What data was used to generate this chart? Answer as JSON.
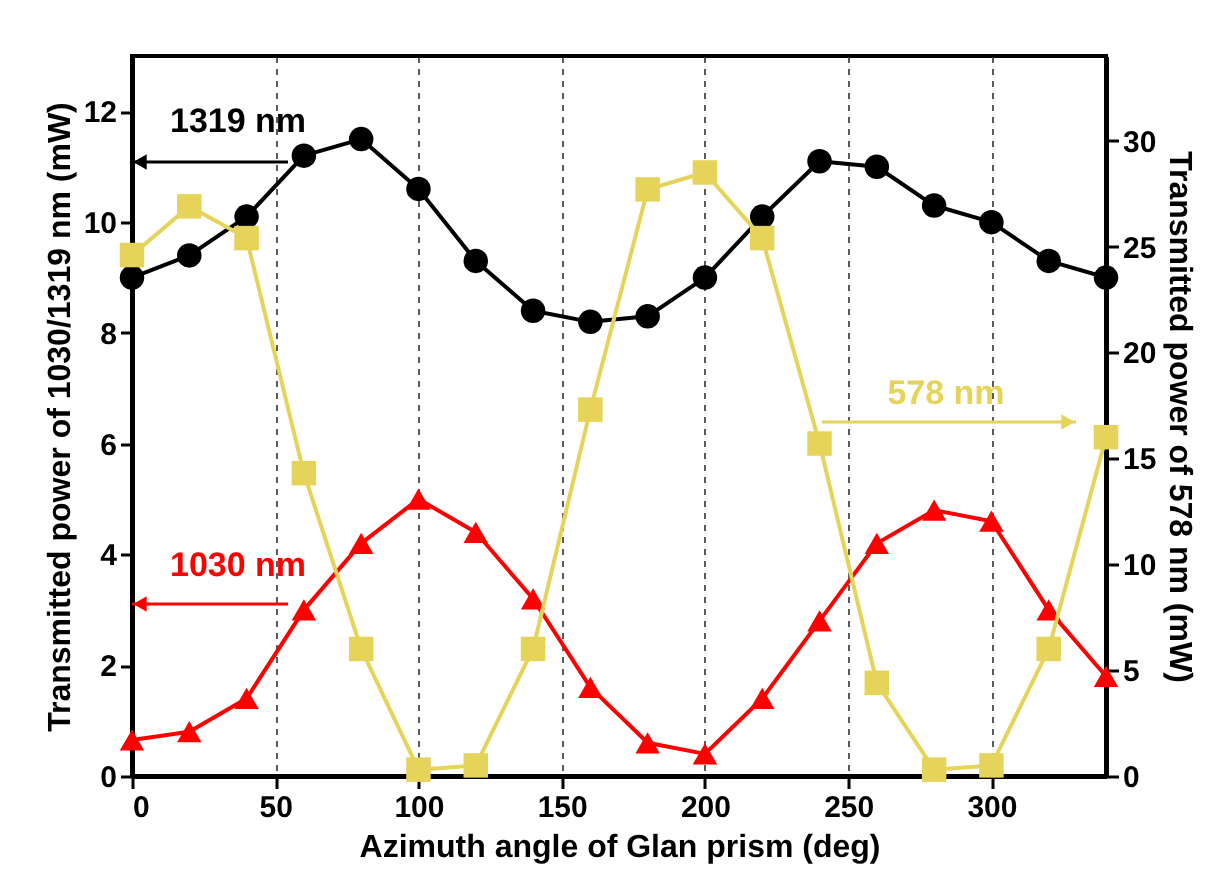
{
  "chart_data": {
    "type": "line",
    "xlabel": "Azimuth angle of Glan prism (deg)",
    "ylabel": "Transmitted power of 1030/1319 nm (mW)",
    "y2label": "Transmitted power of 578 nm (mW)",
    "x": [
      0,
      20,
      40,
      60,
      80,
      100,
      120,
      140,
      160,
      180,
      200,
      220,
      240,
      260,
      280,
      300,
      320,
      340
    ],
    "series": [
      {
        "name": "1319 nm",
        "color": "#000000",
        "marker": "circle",
        "values": [
          9.0,
          9.4,
          10.1,
          11.2,
          11.5,
          10.6,
          9.3,
          8.4,
          8.2,
          8.3,
          9.0,
          10.1,
          11.1,
          11.0,
          10.3,
          10.0,
          9.3,
          9.0
        ]
      },
      {
        "name": "1030 nm",
        "color": "#ff0000",
        "marker": "triangle",
        "values": [
          0.65,
          0.8,
          1.4,
          3.0,
          4.2,
          5.0,
          4.4,
          3.2,
          1.6,
          0.6,
          0.4,
          1.4,
          2.8,
          4.2,
          4.8,
          4.6,
          3.0,
          1.8
        ]
      },
      {
        "name": "578 nm",
        "color": "#e6d35a",
        "marker": "square",
        "axis": "y2",
        "values": [
          24.6,
          26.9,
          25.4,
          14.3,
          6.0,
          0.3,
          0.5,
          6.0,
          17.3,
          27.7,
          28.5,
          25.4,
          15.7,
          4.4,
          0.3,
          0.5,
          6.0,
          16.0
        ]
      }
    ],
    "xlim": [
      0,
      340
    ],
    "xticks": [
      0,
      50,
      100,
      150,
      200,
      250,
      300
    ],
    "ylim": [
      0,
      13
    ],
    "yticks": [
      0,
      2,
      4,
      6,
      8,
      10,
      12
    ],
    "y2lim": [
      0,
      34
    ],
    "y2ticks": [
      0,
      5,
      10,
      15,
      20,
      25,
      30
    ],
    "grid": "x",
    "line_style": "solid"
  }
}
